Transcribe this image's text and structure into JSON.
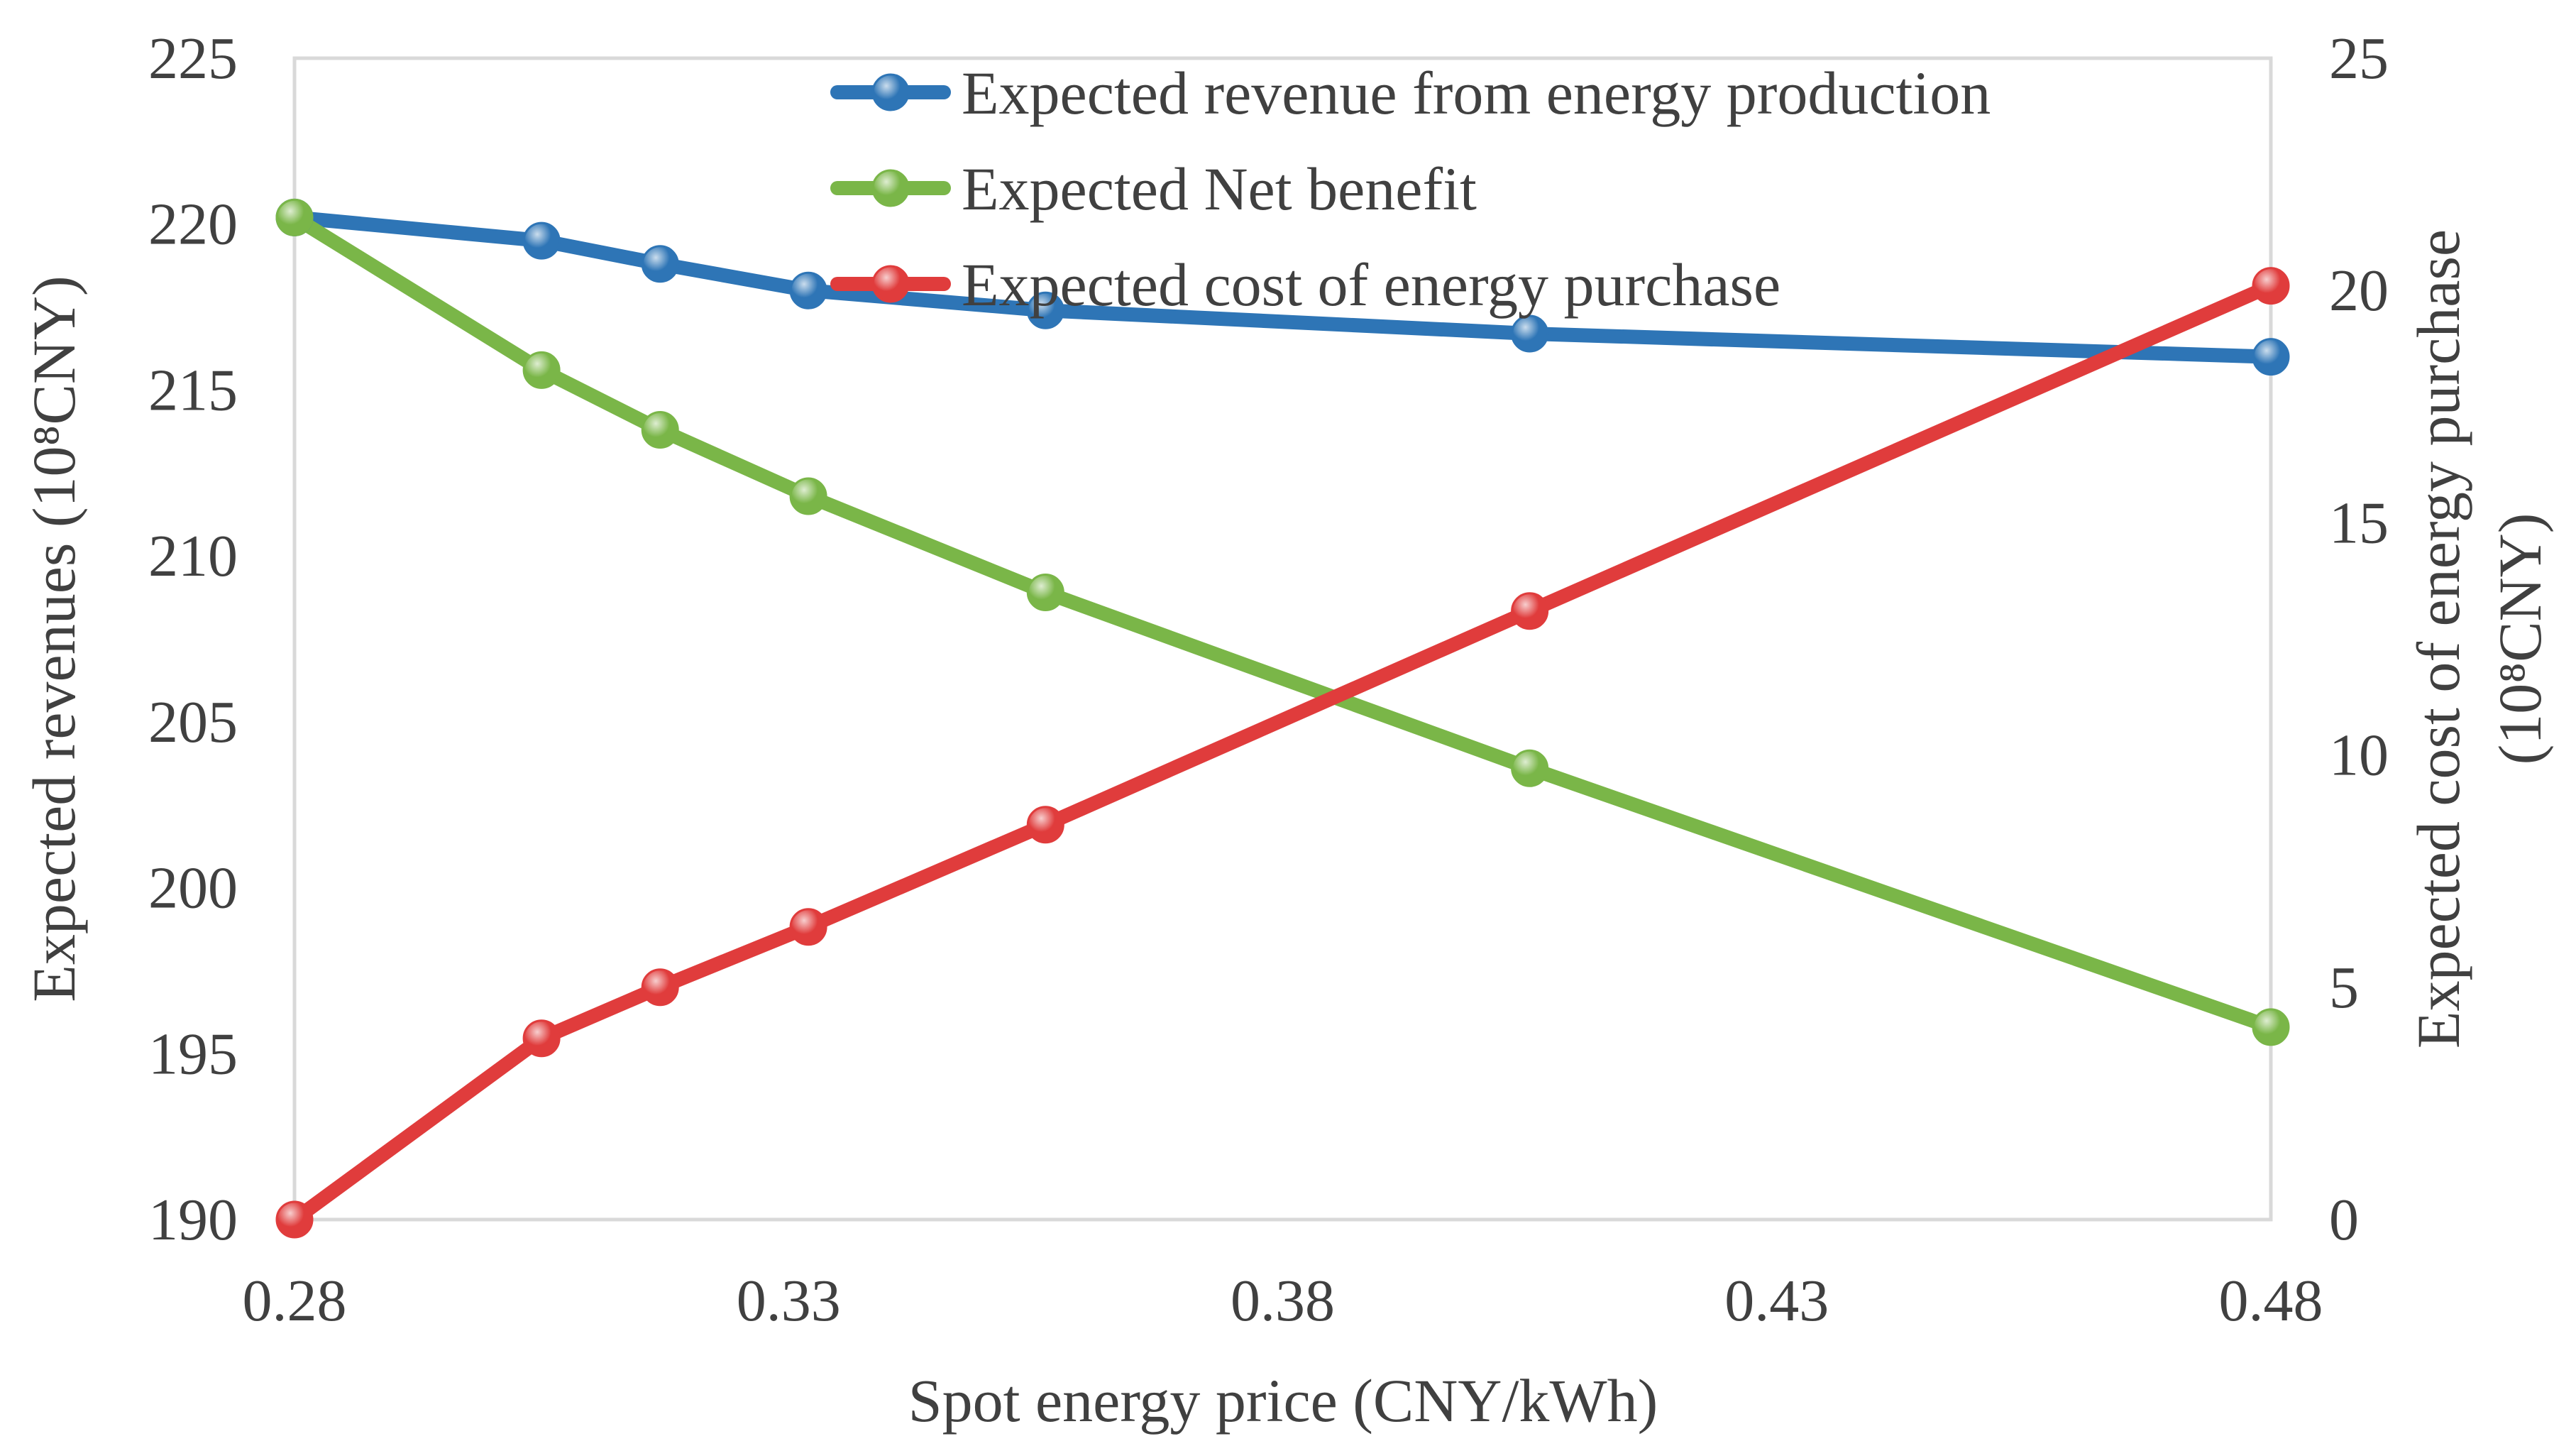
{
  "chart_data": {
    "type": "line",
    "title": "",
    "xlabel": "Spot energy  price (CNY/kWh)",
    "ylabel_left": "Expected  revenues  (10⁸CNY)",
    "ylabel_right_line1": "Expected  cost of energy purchase",
    "ylabel_right_line2": "(10⁸CNY)",
    "xlim": [
      0.28,
      0.48
    ],
    "ylim_left": [
      190,
      225
    ],
    "ylim_right": [
      0,
      25
    ],
    "x_ticks": [
      "0.28",
      "0.33",
      "0.38",
      "0.43",
      "0.48"
    ],
    "x_tick_values": [
      0.28,
      0.33,
      0.38,
      0.43,
      0.48
    ],
    "y_left_ticks": [
      "190",
      "195",
      "200",
      "205",
      "210",
      "215",
      "220",
      "225"
    ],
    "y_left_tick_values": [
      190,
      195,
      200,
      205,
      210,
      215,
      220,
      225
    ],
    "y_right_ticks": [
      "0",
      "5",
      "10",
      "15",
      "20",
      "25"
    ],
    "y_right_tick_values": [
      0,
      5,
      10,
      15,
      20,
      25
    ],
    "grid": false,
    "legend_position": "top-center",
    "series": [
      {
        "name": "Expected revenue from energy production",
        "axis": "left",
        "color": "#2E75B6",
        "x": [
          0.28,
          0.305,
          0.317,
          0.332,
          0.356,
          0.405,
          0.48
        ],
        "values": [
          220.2,
          219.5,
          218.8,
          218.0,
          217.4,
          216.7,
          216.0
        ]
      },
      {
        "name": "Expected Net benefit",
        "axis": "left",
        "color": "#7AB648",
        "x": [
          0.28,
          0.305,
          0.317,
          0.332,
          0.356,
          0.405,
          0.48
        ],
        "values": [
          220.2,
          215.6,
          213.8,
          211.8,
          208.9,
          203.6,
          195.8
        ]
      },
      {
        "name": "Expected cost of energy purchase",
        "axis": "right",
        "color": "#E03C3C",
        "x": [
          0.28,
          0.305,
          0.317,
          0.332,
          0.356,
          0.405,
          0.48
        ],
        "values": [
          0.0,
          3.9,
          5.0,
          6.3,
          8.5,
          13.1,
          20.1
        ]
      }
    ]
  }
}
